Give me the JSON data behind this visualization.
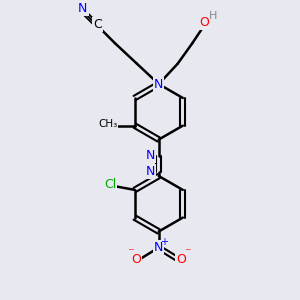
{
  "background_color": "#e8e8f0",
  "bond_color": "#000000",
  "bond_width": 1.8,
  "atom_colors": {
    "N": "#0000ff",
    "O": "#ff0000",
    "C_label": "#000000",
    "Cl": "#00aa00",
    "H": "#888888"
  }
}
